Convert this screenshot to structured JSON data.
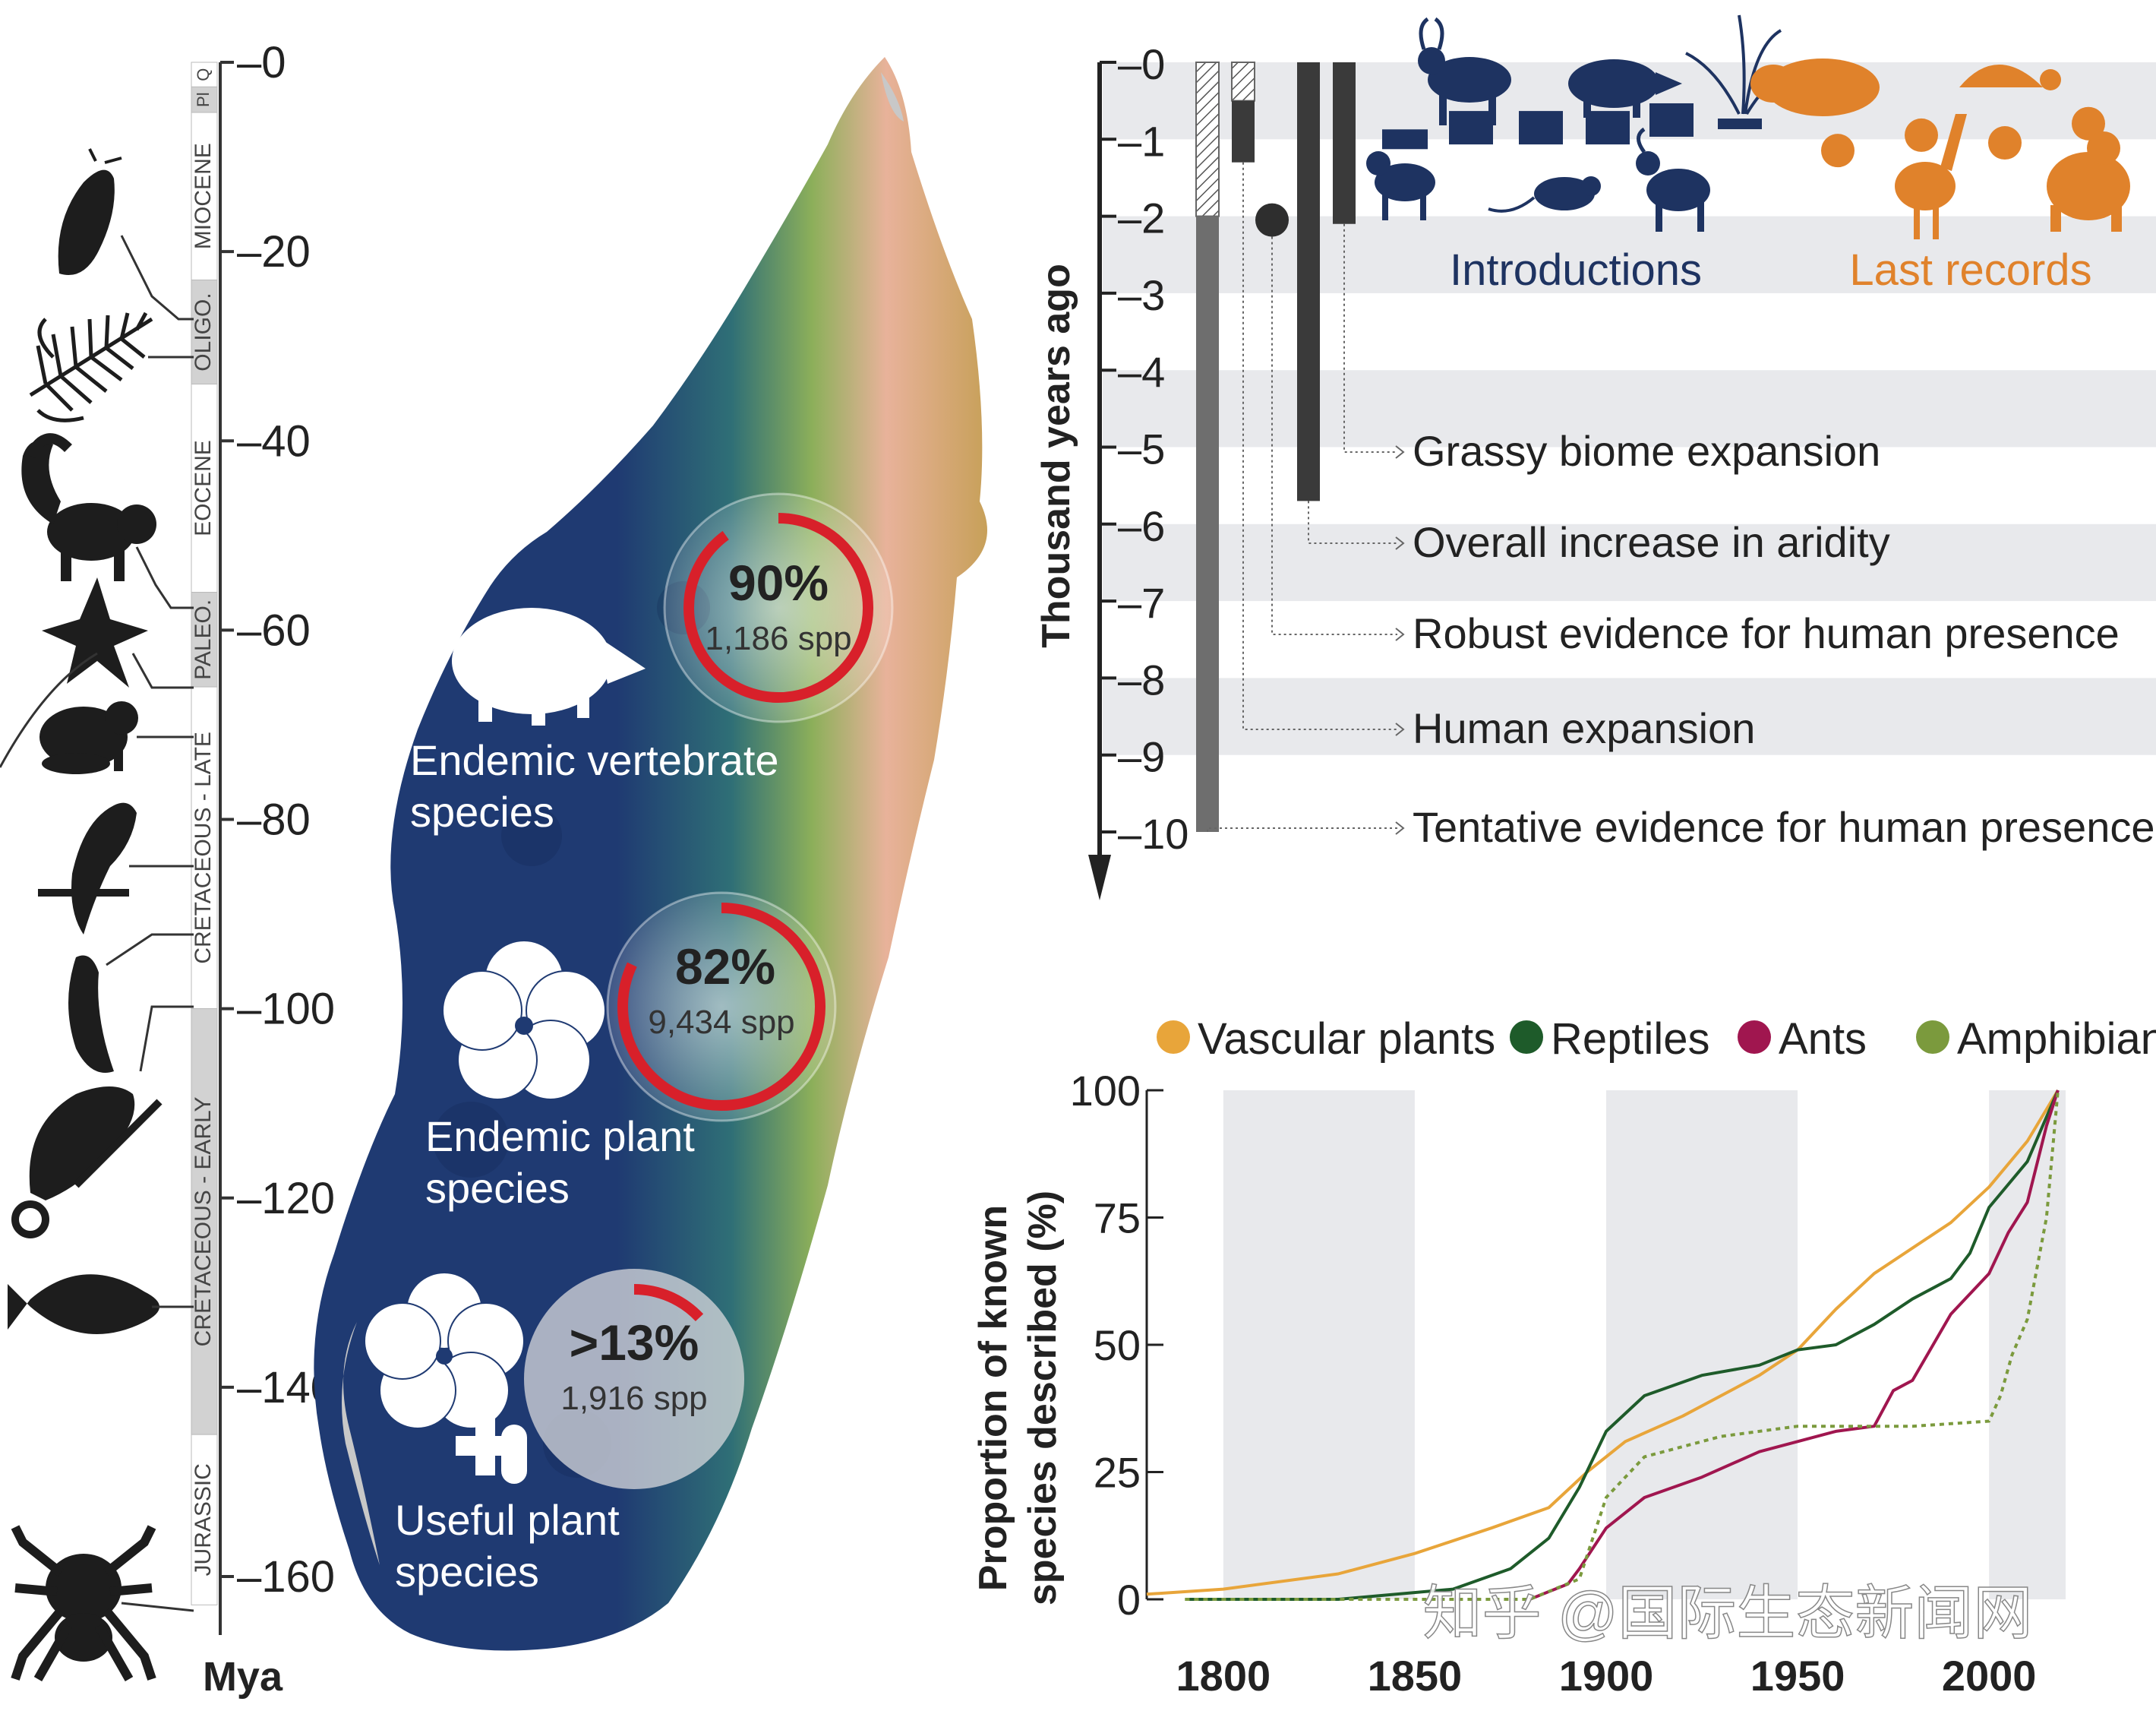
{
  "geologic_timescale": {
    "unit_label": "Mya",
    "ticks": [
      "0",
      "20",
      "40",
      "60",
      "80",
      "100",
      "120",
      "140",
      "160"
    ],
    "ticks_numeric": [
      0,
      20,
      40,
      60,
      80,
      100,
      120,
      140,
      160
    ],
    "periods": [
      {
        "label": "Q",
        "start": 0,
        "end": 2.6
      },
      {
        "label": "Pl",
        "start": 2.6,
        "end": 5.3
      },
      {
        "label": "MIOCENE",
        "start": 5.3,
        "end": 23
      },
      {
        "label": "OLIGO.",
        "start": 23,
        "end": 34
      },
      {
        "label": "EOCENE",
        "start": 34,
        "end": 56
      },
      {
        "label": "PALEO.",
        "start": 56,
        "end": 66
      },
      {
        "label": "CRETACEOUS - LATE",
        "start": 66,
        "end": 100
      },
      {
        "label": "CRETACEOUS - EARLY",
        "start": 100,
        "end": 145
      },
      {
        "label": "JURASSIC",
        "start": 145,
        "end": 163
      }
    ],
    "lineages": [
      "slug",
      "fern",
      "lemur",
      "star-plant",
      "frog",
      "bird",
      "leech",
      "chameleon",
      "fish",
      "spider"
    ]
  },
  "map": {
    "stats": [
      {
        "percent": "90%",
        "percent_value": 90,
        "count": "1,186 spp",
        "label_line1": "Endemic vertebrate",
        "label_line2": "species",
        "icon": "tenrec-icon"
      },
      {
        "percent": "82%",
        "percent_value": 82,
        "count": "9,434 spp",
        "label_line1": "Endemic plant",
        "label_line2": "species",
        "icon": "flower-icon"
      },
      {
        "percent": ">13%",
        "percent_value": 13,
        "count": "1,916 spp",
        "label_line1": "Useful plant",
        "label_line2": "species",
        "icon": "flower-medicine-icon"
      }
    ],
    "colors": {
      "ocean_low": "#1f3a72",
      "mid": "#2f7a78",
      "green": "#8caf5a",
      "high": "#e8b29a",
      "ring": "#d8202a"
    }
  },
  "timeline": {
    "axis_label": "Thousand years ago",
    "ticks": [
      "0",
      "1",
      "2",
      "3",
      "4",
      "5",
      "6",
      "7",
      "8",
      "9",
      "10"
    ],
    "ticks_numeric": [
      0,
      1,
      2,
      3,
      4,
      5,
      6,
      7,
      8,
      9,
      10
    ],
    "introductions_label": "Introductions",
    "last_records_label": "Last records",
    "colors": {
      "introductions": "#1e3361",
      "last_records": "#e0822b"
    },
    "events": [
      {
        "label": "Grassy biome expansion",
        "start": 0,
        "end": 2.1
      },
      {
        "label": "Overall increase in aridity",
        "start": 0,
        "end": 5.7
      },
      {
        "label": "Robust evidence for human presence",
        "point": 2.0
      },
      {
        "label": "Human expansion",
        "start": 0.5,
        "end": 1.3
      },
      {
        "label": "Tentative evidence for human presence",
        "start": 2.0,
        "end": 10
      }
    ],
    "introductions": [
      {
        "name": "dog",
        "value": 1.0
      },
      {
        "name": "zebu",
        "value": 0.85
      },
      {
        "name": "rat",
        "value": 0.85
      },
      {
        "name": "bushpig",
        "value": 0.85
      },
      {
        "name": "goat",
        "value": 0.75
      },
      {
        "name": "grass",
        "value": 0.8
      }
    ],
    "last_records": [
      {
        "name": "hippo",
        "value": 0.9
      },
      {
        "name": "tortoise",
        "value": 0.7
      },
      {
        "name": "elephant-bird",
        "value": 0.8
      },
      {
        "name": "giant-lemur",
        "value": 0.55
      }
    ]
  },
  "chart_data": {
    "type": "line",
    "title": "",
    "xlabel": "",
    "ylabel": "Proportion of known species described (%)",
    "ylabel_line1": "Proportion of known",
    "ylabel_line2": "species described (%)",
    "xlim": [
      1780,
      2020
    ],
    "ylim": [
      0,
      100
    ],
    "x_ticks": [
      "1800",
      "1850",
      "1900",
      "1950",
      "2000"
    ],
    "y_ticks": [
      "0",
      "25",
      "50",
      "75",
      "100"
    ],
    "legend_position": "top",
    "series": [
      {
        "name": "Vascular plants",
        "color": "#e8a53a",
        "dashed": false,
        "x": [
          1780,
          1800,
          1830,
          1850,
          1870,
          1885,
          1895,
          1905,
          1920,
          1940,
          1950,
          1960,
          1970,
          1980,
          1990,
          2000,
          2010,
          2018
        ],
        "y": [
          1,
          2,
          5,
          9,
          14,
          18,
          25,
          31,
          36,
          44,
          49,
          57,
          64,
          69,
          74,
          81,
          90,
          100
        ]
      },
      {
        "name": "Reptiles",
        "color": "#1e5b2a",
        "dashed": false,
        "x": [
          1790,
          1830,
          1860,
          1875,
          1885,
          1893,
          1900,
          1910,
          1925,
          1940,
          1950,
          1960,
          1970,
          1980,
          1990,
          1995,
          2000,
          2010,
          2018
        ],
        "y": [
          0,
          0,
          2,
          6,
          12,
          22,
          33,
          40,
          44,
          46,
          49,
          50,
          54,
          59,
          63,
          68,
          77,
          86,
          100
        ]
      },
      {
        "name": "Ants",
        "color": "#a0164f",
        "dashed": false,
        "x": [
          1880,
          1890,
          1893,
          1900,
          1910,
          1925,
          1940,
          1950,
          1960,
          1970,
          1975,
          1980,
          1990,
          2000,
          2005,
          2010,
          2015,
          2018
        ],
        "y": [
          0,
          3,
          6,
          14,
          20,
          24,
          29,
          31,
          33,
          34,
          41,
          43,
          56,
          64,
          72,
          78,
          93,
          100
        ]
      },
      {
        "name": "Amphibians",
        "color": "#7b9a3d",
        "dashed": true,
        "x": [
          1790,
          1880,
          1893,
          1900,
          1910,
          1930,
          1950,
          1980,
          2000,
          2003,
          2006,
          2010,
          2015,
          2018
        ],
        "y": [
          0,
          0,
          4,
          20,
          28,
          32,
          34,
          34,
          35,
          40,
          48,
          55,
          75,
          100
        ]
      }
    ],
    "grid_bands": [
      [
        1800,
        1850
      ],
      [
        1900,
        1950
      ],
      [
        2000,
        2020
      ]
    ]
  },
  "watermark": "知乎 @国际生态新闻网"
}
